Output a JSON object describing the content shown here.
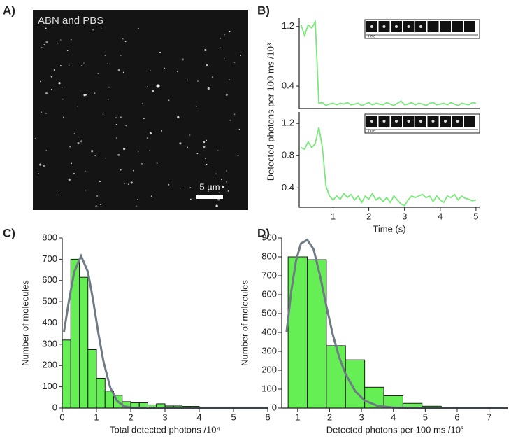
{
  "panel_labels": [
    "A)",
    "B)",
    "C)",
    "D)"
  ],
  "image": {
    "label": "ABN and PBS",
    "scale_bar": "5 µm"
  },
  "chart_data": [
    {
      "type": "line",
      "ylabel": "Detected photons per 100 ms /10³",
      "inset_label": "Time",
      "x": [
        0.1,
        0.2,
        0.3,
        0.4,
        0.5,
        0.6,
        0.7,
        0.8,
        0.9,
        1.0,
        1.1,
        1.2,
        1.3,
        1.4,
        1.5,
        1.6,
        1.7,
        1.8,
        1.9,
        2.0,
        2.1,
        2.2,
        2.3,
        2.4,
        2.5,
        2.6,
        2.7,
        2.8,
        2.9,
        3.0,
        3.1,
        3.2,
        3.3,
        3.4,
        3.5,
        3.6,
        3.7,
        3.8,
        3.9,
        4.0,
        4.1,
        4.2,
        4.3,
        4.4,
        4.5,
        4.6,
        4.7,
        4.8,
        4.9,
        5.0
      ],
      "values": [
        1.22,
        1.08,
        1.22,
        1.18,
        1.26,
        0.17,
        0.18,
        0.14,
        0.16,
        0.17,
        0.15,
        0.17,
        0.16,
        0.18,
        0.15,
        0.16,
        0.17,
        0.14,
        0.16,
        0.18,
        0.15,
        0.17,
        0.16,
        0.15,
        0.18,
        0.16,
        0.14,
        0.17,
        0.2,
        0.15,
        0.16,
        0.18,
        0.15,
        0.17,
        0.16,
        0.14,
        0.17,
        0.18,
        0.15,
        0.16,
        0.17,
        0.15,
        0.18,
        0.16,
        0.14,
        0.17,
        0.16,
        0.15,
        0.18,
        0.17
      ],
      "color": "#7be87b",
      "xlim": [
        0.05,
        5.1
      ],
      "ylim": [
        0.1,
        1.32
      ],
      "yticks": [
        0.4,
        1.2
      ]
    },
    {
      "type": "line",
      "xlabel": "Time (s)",
      "inset_label": "Time",
      "x": [
        0.1,
        0.2,
        0.3,
        0.4,
        0.5,
        0.6,
        0.7,
        0.8,
        0.9,
        1.0,
        1.1,
        1.2,
        1.3,
        1.4,
        1.5,
        1.6,
        1.7,
        1.8,
        1.9,
        2.0,
        2.1,
        2.2,
        2.3,
        2.4,
        2.5,
        2.6,
        2.7,
        2.8,
        2.9,
        3.0,
        3.1,
        3.2,
        3.3,
        3.4,
        3.5,
        3.6,
        3.7,
        3.8,
        3.9,
        4.0,
        4.1,
        4.2,
        4.3,
        4.4,
        4.5,
        4.6,
        4.7,
        4.8,
        4.9,
        5.0
      ],
      "values": [
        0.9,
        0.88,
        0.97,
        0.9,
        0.95,
        1.15,
        0.9,
        0.42,
        0.3,
        0.25,
        0.3,
        0.26,
        0.33,
        0.28,
        0.32,
        0.25,
        0.3,
        0.22,
        0.3,
        0.26,
        0.33,
        0.25,
        0.28,
        0.23,
        0.28,
        0.22,
        0.3,
        0.25,
        0.2,
        0.18,
        0.25,
        0.3,
        0.28,
        0.3,
        0.32,
        0.28,
        0.3,
        0.23,
        0.3,
        0.25,
        0.22,
        0.3,
        0.28,
        0.32,
        0.25,
        0.3,
        0.27,
        0.26,
        0.24,
        0.25
      ],
      "color": "#7be87b",
      "xlim": [
        0.05,
        5.1
      ],
      "ylim": [
        0.16,
        1.34
      ],
      "xticks": [
        1,
        2,
        3,
        4,
        5
      ],
      "yticks": [
        0.4,
        0.8,
        1.2
      ]
    },
    {
      "type": "histogram",
      "xlabel": "Total detected photons /10⁴",
      "ylabel": "Number of molecules",
      "bins": [
        0,
        0.25,
        0.5,
        0.75,
        1,
        1.25,
        1.5,
        1.75,
        2,
        2.25,
        2.5,
        2.75,
        3,
        3.25,
        3.5,
        3.75,
        4,
        4.25,
        4.5,
        4.75,
        5,
        5.25,
        5.5,
        5.75,
        6
      ],
      "values": [
        320,
        700,
        615,
        275,
        140,
        80,
        60,
        30,
        25,
        25,
        15,
        20,
        10,
        10,
        8,
        8,
        5,
        5,
        5,
        5,
        5,
        5,
        5,
        5
      ],
      "color": "#66ee55",
      "fit": {
        "x": [
          0.05,
          0.2,
          0.35,
          0.55,
          0.75,
          0.9,
          1.05,
          1.2,
          1.4,
          1.6,
          1.8,
          2.0,
          2.5,
          3,
          6
        ],
        "values": [
          358,
          509,
          640,
          715,
          640,
          509,
          358,
          222,
          97,
          34,
          9,
          2,
          1,
          0,
          0
        ],
        "color": "#6e7b85"
      },
      "xlim": [
        0,
        6
      ],
      "ylim": [
        0,
        800
      ],
      "xticks": [
        0,
        1,
        2,
        3,
        4,
        5,
        6
      ],
      "yticks": [
        0,
        100,
        200,
        300,
        400,
        500,
        600,
        700,
        800
      ]
    },
    {
      "type": "histogram",
      "xlabel": "Detected photons per 100 ms /10³",
      "ylabel": "Number of molecules",
      "bins": [
        0.7,
        1.3,
        1.9,
        2.5,
        3.1,
        3.7,
        4.3,
        4.9,
        5.5,
        6.1
      ],
      "values": [
        800,
        785,
        330,
        255,
        110,
        65,
        25,
        10,
        3
      ],
      "color": "#66ee55",
      "fit": {
        "x": [
          0.65,
          0.8,
          0.95,
          1.1,
          1.3,
          1.5,
          1.7,
          1.9,
          2.1,
          2.3,
          2.5,
          2.8,
          3.1,
          3.5,
          4,
          5,
          7.6
        ],
        "values": [
          400,
          620,
          780,
          870,
          890,
          840,
          700,
          540,
          390,
          270,
          180,
          90,
          40,
          12,
          3,
          0,
          0
        ],
        "color": "#6e7b85"
      },
      "xlim": [
        0.5,
        7.6
      ],
      "ylim": [
        0,
        900
      ],
      "xticks": [
        1,
        2,
        3,
        4,
        5,
        6,
        7
      ],
      "yticks": [
        0,
        100,
        200,
        300,
        400,
        500,
        600,
        700,
        800,
        900
      ]
    }
  ]
}
